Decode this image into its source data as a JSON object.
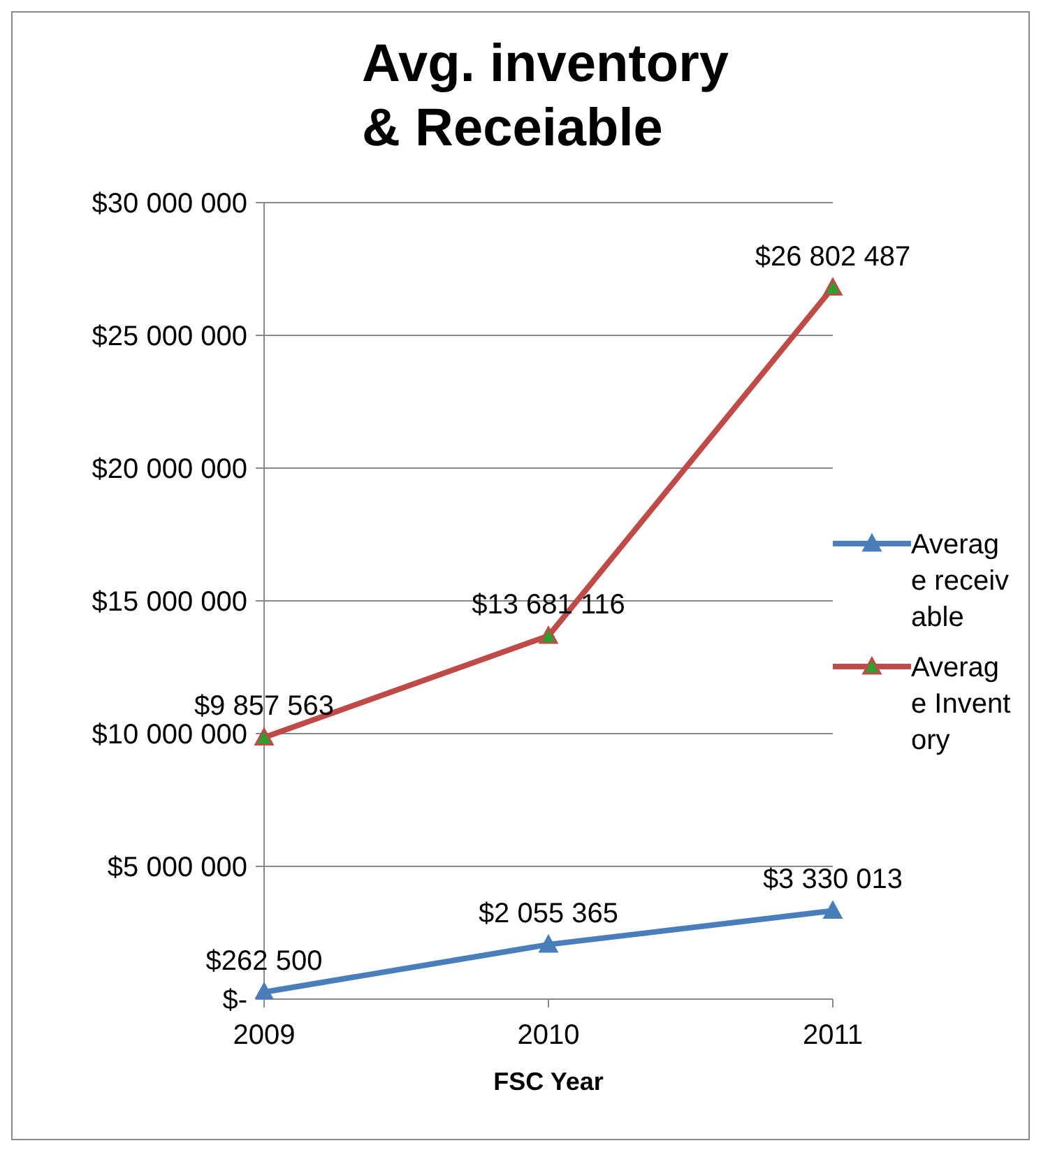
{
  "chart_data": {
    "type": "line",
    "title": "Avg. inventory & Receiable",
    "xlabel": "FSC Year",
    "categories": [
      "2009",
      "2010",
      "2011"
    ],
    "series": [
      {
        "name": "Average receivable",
        "color": "#4a7ebb",
        "values": [
          262500,
          2055365,
          3330013
        ],
        "value_labels": [
          "$262 500",
          "$2 055 365",
          "$3 330 013"
        ]
      },
      {
        "name": "Average Inventory",
        "color": "#be4b48",
        "values": [
          9857563,
          13681116,
          26802487
        ],
        "value_labels": [
          "$9 857 563",
          "$13 681 116",
          "$26 802 487"
        ]
      }
    ],
    "ylim": [
      0,
      30000000
    ],
    "yticks": [
      {
        "value": 0,
        "label": "$-"
      },
      {
        "value": 5000000,
        "label": "$5 000 000"
      },
      {
        "value": 10000000,
        "label": "$10 000 000"
      },
      {
        "value": 15000000,
        "label": "$15 000 000"
      },
      {
        "value": 20000000,
        "label": "$20 000 000"
      },
      {
        "value": 25000000,
        "label": "$25 000 000"
      },
      {
        "value": 30000000,
        "label": "$30 000 000"
      }
    ],
    "grid": "y",
    "legend": "right",
    "marker": "triangle"
  }
}
